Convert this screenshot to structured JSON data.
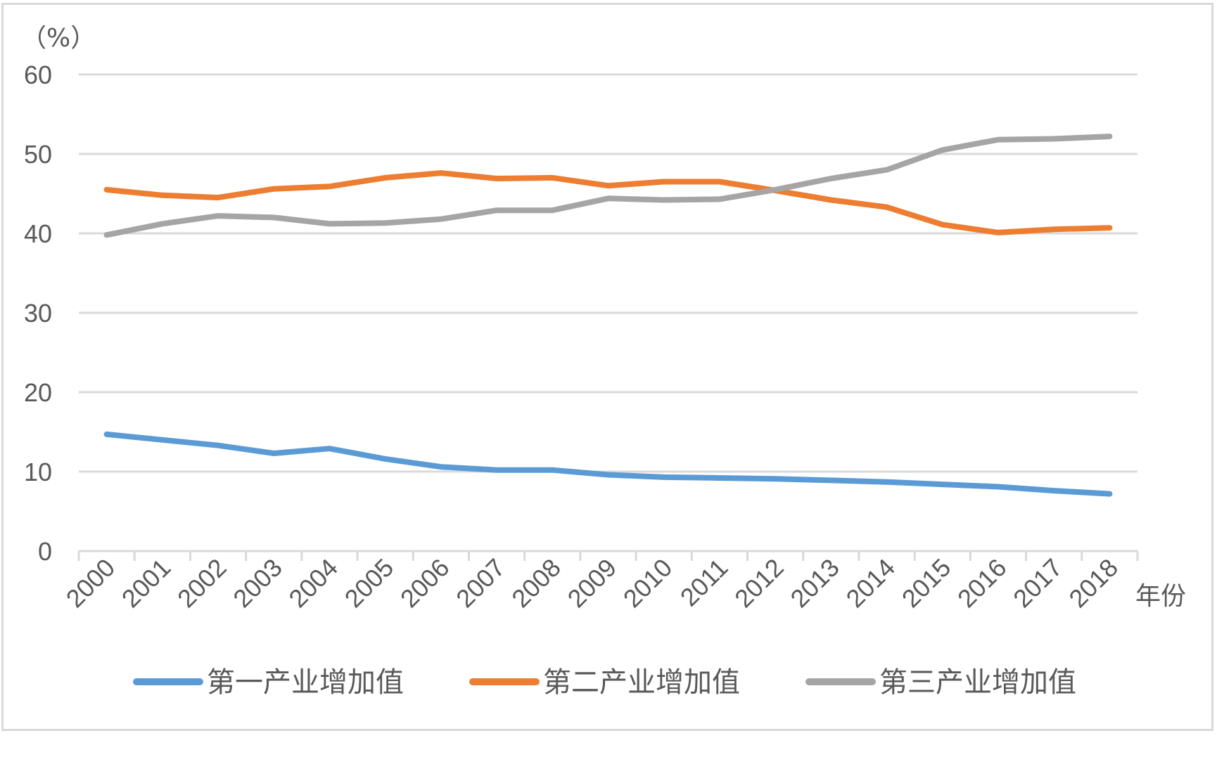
{
  "chart_data": {
    "type": "line",
    "y_unit_label": "（%）",
    "x_unit_label": "年份",
    "ylim": [
      0,
      60
    ],
    "yticks": [
      0,
      10,
      20,
      30,
      40,
      50,
      60
    ],
    "grid": true,
    "legend_position": "bottom",
    "categories": [
      "2000",
      "2001",
      "2002",
      "2003",
      "2004",
      "2005",
      "2006",
      "2007",
      "2008",
      "2009",
      "2010",
      "2011",
      "2012",
      "2013",
      "2014",
      "2015",
      "2016",
      "2017",
      "2018"
    ],
    "series": [
      {
        "name": "第一产业增加值",
        "color": "#5b9bd5",
        "values": [
          14.7,
          14.0,
          13.3,
          12.3,
          12.9,
          11.6,
          10.6,
          10.2,
          10.2,
          9.6,
          9.3,
          9.2,
          9.1,
          8.9,
          8.7,
          8.4,
          8.1,
          7.6,
          7.2
        ]
      },
      {
        "name": "第二产业增加值",
        "color": "#ed7d31",
        "values": [
          45.5,
          44.8,
          44.5,
          45.6,
          45.9,
          47.0,
          47.6,
          46.9,
          47.0,
          46.0,
          46.5,
          46.5,
          45.4,
          44.2,
          43.3,
          41.1,
          40.1,
          40.5,
          40.7
        ]
      },
      {
        "name": "第三产业增加值",
        "color": "#a5a5a5",
        "values": [
          39.8,
          41.2,
          42.2,
          42.0,
          41.2,
          41.3,
          41.8,
          42.9,
          42.9,
          44.4,
          44.2,
          44.3,
          45.5,
          46.9,
          48.0,
          50.5,
          51.8,
          51.9,
          52.2
        ]
      }
    ]
  }
}
